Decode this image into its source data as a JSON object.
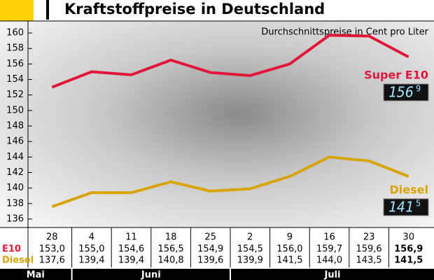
{
  "header": {
    "title": "Kraftstoffpreise in Deutschland"
  },
  "chart_data": {
    "type": "line",
    "subtitle": "Durchschnittspreise in Cent pro Liter",
    "categories": [
      "28",
      "4",
      "11",
      "18",
      "25",
      "2",
      "9",
      "16",
      "23",
      "30"
    ],
    "months": [
      "Mai",
      "Juni",
      "Juli"
    ],
    "series": [
      {
        "name": "E10",
        "label": "Super E10",
        "color": "#e2163b",
        "values": [
          153.0,
          155.0,
          154.6,
          156.5,
          154.9,
          154.5,
          156.0,
          159.7,
          159.6,
          156.9
        ],
        "value_labels": [
          "153,0",
          "155,0",
          "154,6",
          "156,5",
          "154,9",
          "154,5",
          "156,0",
          "159,7",
          "159,6",
          "156,9"
        ],
        "display": {
          "main": "156",
          "sup": "9"
        }
      },
      {
        "name": "Diesel",
        "label": "Diesel",
        "color": "#d9a400",
        "values": [
          137.6,
          139.4,
          139.4,
          140.8,
          139.6,
          139.9,
          141.5,
          144.0,
          143.5,
          141.5
        ],
        "value_labels": [
          "137,6",
          "139,4",
          "139,4",
          "140,8",
          "139,6",
          "139,9",
          "141,5",
          "144,0",
          "143,5",
          "141,5"
        ],
        "display": {
          "main": "141",
          "sup": "5"
        }
      }
    ],
    "ylim": [
      135,
      161
    ],
    "yticks": [
      136,
      138,
      140,
      142,
      144,
      146,
      148,
      150,
      152,
      154,
      156,
      158,
      160
    ]
  }
}
